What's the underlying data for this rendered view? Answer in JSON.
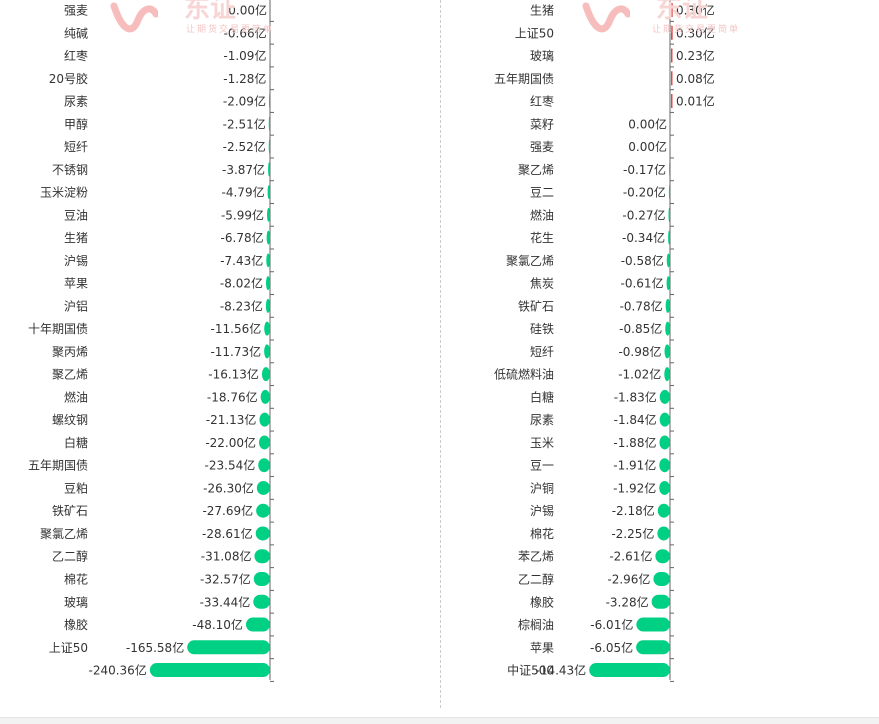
{
  "watermark": {
    "brand": "东证",
    "slogan": "让期货交易更简单"
  },
  "colors": {
    "bar": "#00d084",
    "positive": "#e04848",
    "axis": "#666666",
    "label": "#333333"
  },
  "chart_data": [
    {
      "type": "bar",
      "orientation": "horizontal",
      "title": "",
      "unit": "亿",
      "categories": [
        "强麦",
        "纯碱",
        "红枣",
        "20号胶",
        "尿素",
        "甲醇",
        "短纤",
        "不锈钢",
        "玉米淀粉",
        "豆油",
        "生猪",
        "沪锡",
        "苹果",
        "沪铝",
        "十年期国债",
        "聚丙烯",
        "聚乙烯",
        "燃油",
        "螺纹钢",
        "白糖",
        "五年期国债",
        "豆粕",
        "铁矿石",
        "聚氯乙烯",
        "乙二醇",
        "棉花",
        "玻璃",
        "橡胶",
        "上证50",
        ""
      ],
      "values": [
        0.0,
        -0.66,
        -1.09,
        -1.28,
        -2.09,
        -2.51,
        -2.52,
        -3.87,
        -4.79,
        -5.99,
        -6.78,
        -7.43,
        -8.02,
        -8.23,
        -11.56,
        -11.73,
        -16.13,
        -18.76,
        -21.13,
        -22.0,
        -23.54,
        -26.3,
        -27.69,
        -28.61,
        -31.08,
        -32.57,
        -33.44,
        -48.1,
        -165.58,
        -240.36
      ],
      "labels": [
        "0.00亿",
        "-0.66亿",
        "-1.09亿",
        "-1.28亿",
        "-2.09亿",
        "-2.51亿",
        "-2.52亿",
        "-3.87亿",
        "-4.79亿",
        "-5.99亿",
        "-6.78亿",
        "-7.43亿",
        "-8.02亿",
        "-8.23亿",
        "-11.56亿",
        "-11.73亿",
        "-16.13亿",
        "-18.76亿",
        "-21.13亿",
        "-22.00亿",
        "-23.54亿",
        "-26.30亿",
        "-27.69亿",
        "-28.61亿",
        "-31.08亿",
        "-32.57亿",
        "-33.44亿",
        "-48.10亿",
        "-165.58亿",
        "-240.36亿"
      ]
    },
    {
      "type": "bar",
      "orientation": "horizontal",
      "title": "",
      "unit": "亿",
      "categories": [
        "生猪",
        "上证50",
        "玻璃",
        "五年期国债",
        "红枣",
        "菜籽",
        "强麦",
        "聚乙烯",
        "豆二",
        "燃油",
        "花生",
        "聚氯乙烯",
        "焦炭",
        "铁矿石",
        "硅铁",
        "短纤",
        "低硫燃料油",
        "白糖",
        "尿素",
        "玉米",
        "豆一",
        "沪铜",
        "沪锡",
        "棉花",
        "苯乙烯",
        "乙二醇",
        "橡胶",
        "棕榈油",
        "苹果",
        "中证500"
      ],
      "values": [
        0.3,
        0.3,
        0.23,
        0.08,
        0.01,
        0.0,
        0.0,
        -0.17,
        -0.2,
        -0.27,
        -0.34,
        -0.58,
        -0.61,
        -0.78,
        -0.85,
        -0.98,
        -1.02,
        -1.83,
        -1.84,
        -1.88,
        -1.91,
        -1.92,
        -2.18,
        -2.25,
        -2.61,
        -2.96,
        -3.28,
        -6.01,
        -6.05,
        -14.43
      ],
      "labels": [
        "0.30亿",
        "0.30亿",
        "0.23亿",
        "0.08亿",
        "0.01亿",
        "0.00亿",
        "0.00亿",
        "-0.17亿",
        "-0.20亿",
        "-0.27亿",
        "-0.34亿",
        "-0.58亿",
        "-0.61亿",
        "-0.78亿",
        "-0.85亿",
        "-0.98亿",
        "-1.02亿",
        "-1.83亿",
        "-1.84亿",
        "-1.88亿",
        "-1.91亿",
        "-1.92亿",
        "-2.18亿",
        "-2.25亿",
        "-2.61亿",
        "-2.96亿",
        "-3.28亿",
        "-6.01亿",
        "-6.05亿",
        "-14.43亿"
      ]
    }
  ]
}
